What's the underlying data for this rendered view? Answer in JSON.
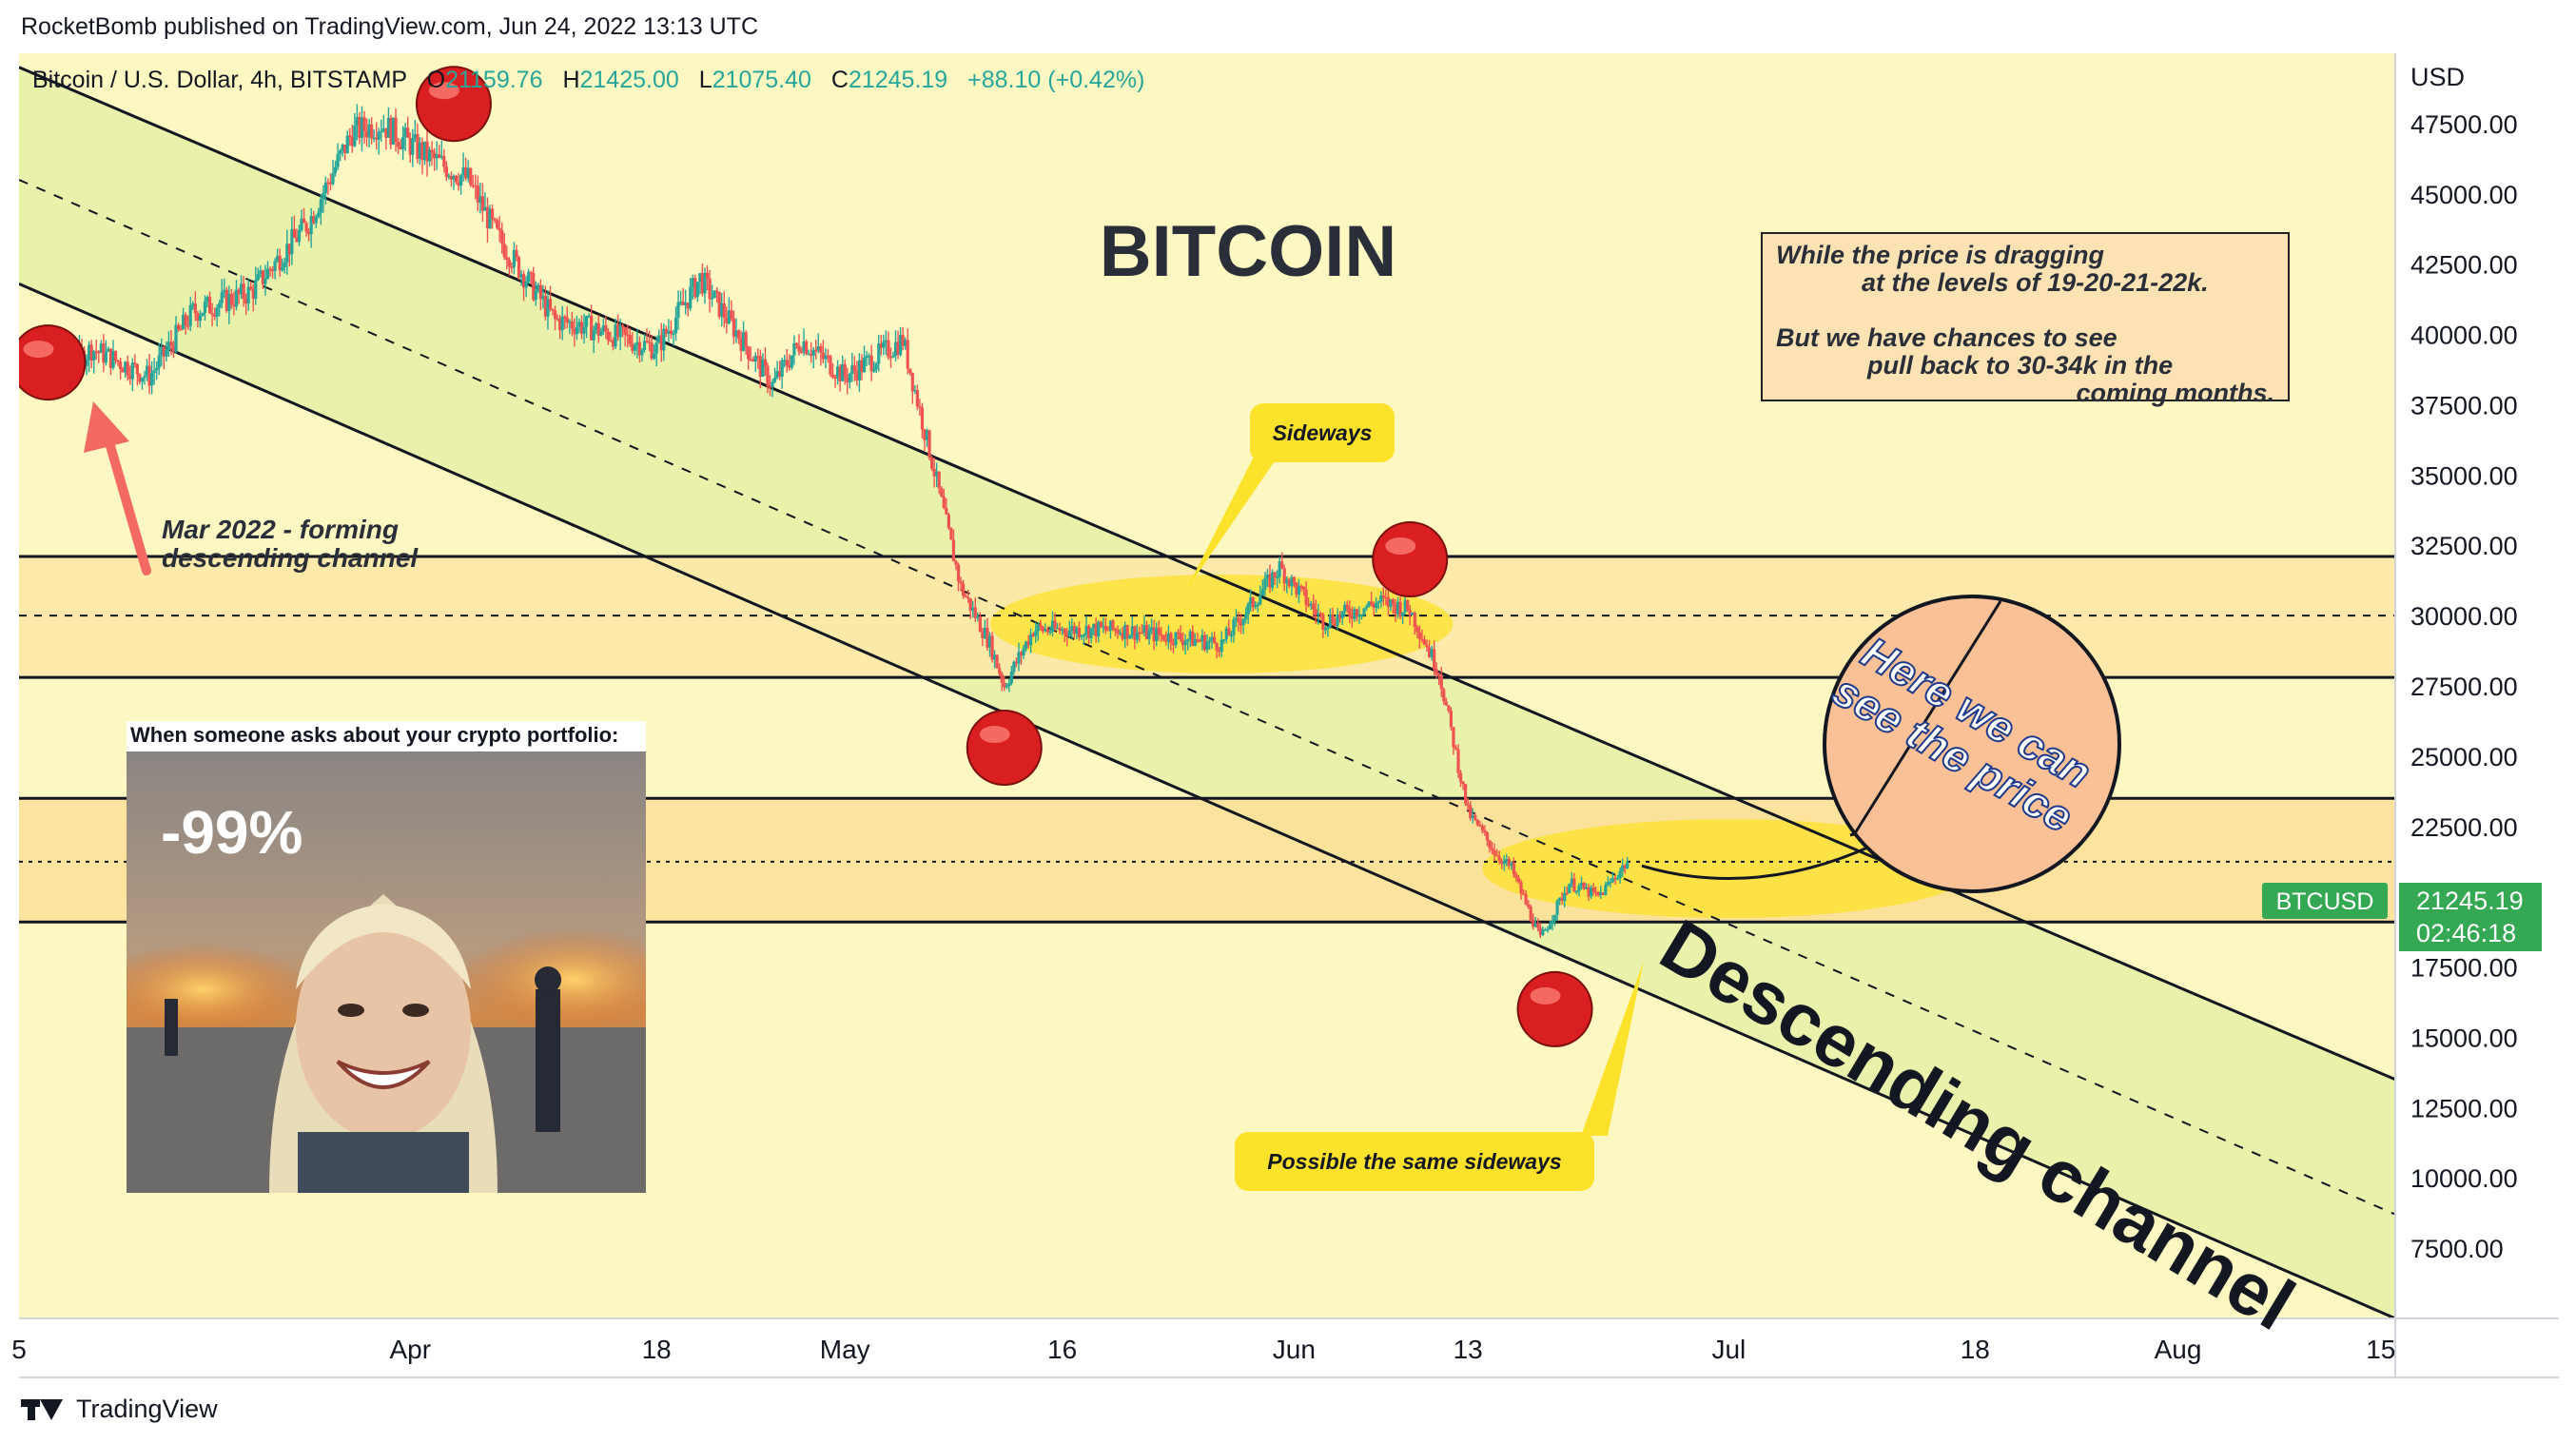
{
  "header": {
    "published": "RocketBomb published on TradingView.com, Jun 24, 2022 13:13 UTC"
  },
  "legend": {
    "symbol": "Bitcoin / U.S. Dollar, 4h, BITSTAMP",
    "open_label": "O",
    "open": "21159.76",
    "high_label": "H",
    "high": "21425.00",
    "low_label": "L",
    "low": "21075.40",
    "close_label": "C",
    "close": "21245.19",
    "change": "+88.10 (+0.42%)"
  },
  "currency": "USD",
  "price_tag": {
    "symbol": "BTCUSD",
    "price": "21245.19",
    "countdown": "02:46:18",
    "color": "#34a853"
  },
  "colors": {
    "background": "#fdf7c2",
    "channel_fill": "#e8f0a8",
    "band_fill": "#fde8a6",
    "bull": "#26a69a",
    "bear": "#ef5350",
    "callout": "#fde22b"
  },
  "annotations": {
    "title": "BITCOIN",
    "note_lines": [
      "While the price is dragging",
      "at the levels of 19-20-21-22k.",
      "",
      "But we have chances to see",
      "pull back to 30-34k in the",
      "coming months."
    ],
    "channel_start": [
      "Mar 2022 - forming",
      "descending channel"
    ],
    "sideways": "Sideways",
    "possible_sideways": "Possible the same sideways",
    "circle_text": [
      "Here we can",
      "see the price"
    ],
    "channel_label": "Descending channel"
  },
  "meme": {
    "caption": "When someone asks about your crypto portfolio:",
    "percent": "-99%"
  },
  "footer": {
    "brand": "TradingView"
  },
  "chart_data": {
    "type": "candlestick",
    "timeframe": "4h",
    "ylim": [
      5000,
      50000
    ],
    "y_ticks": [
      7500,
      10000,
      12500,
      15000,
      17500,
      20000,
      22500,
      25000,
      27500,
      30000,
      32500,
      35000,
      37500,
      40000,
      42500,
      45000,
      47500
    ],
    "y_tick_labels": [
      "7500.00",
      "10000.00",
      "12500.00",
      "15000.00",
      "17500.00",
      "20000.00",
      "22500.00",
      "25000.00",
      "27500.00",
      "30000.00",
      "32500.00",
      "35000.00",
      "37500.00",
      "40000.00",
      "42500.00",
      "45000.00",
      "47500.00"
    ],
    "x_range": [
      "2022-03-05",
      "2022-08-16"
    ],
    "x_ticks": [
      {
        "date": "2022-03-05",
        "label": "5"
      },
      {
        "date": "2022-04-01",
        "label": "Apr"
      },
      {
        "date": "2022-04-18",
        "label": "18"
      },
      {
        "date": "2022-05-01",
        "label": "May"
      },
      {
        "date": "2022-05-16",
        "label": "16"
      },
      {
        "date": "2022-06-01",
        "label": "Jun"
      },
      {
        "date": "2022-06-13",
        "label": "13"
      },
      {
        "date": "2022-07-01",
        "label": "Jul"
      },
      {
        "date": "2022-07-18",
        "label": "18"
      },
      {
        "date": "2022-08-01",
        "label": "Aug"
      },
      {
        "date": "2022-08-15",
        "label": "15"
      }
    ],
    "price_path": [
      {
        "date": "2022-03-05",
        "price": 39000
      },
      {
        "date": "2022-03-07",
        "price": 38200
      },
      {
        "date": "2022-03-10",
        "price": 39500
      },
      {
        "date": "2022-03-14",
        "price": 38500
      },
      {
        "date": "2022-03-17",
        "price": 40800
      },
      {
        "date": "2022-03-21",
        "price": 41500
      },
      {
        "date": "2022-03-25",
        "price": 44000
      },
      {
        "date": "2022-03-28",
        "price": 47200
      },
      {
        "date": "2022-03-30",
        "price": 47500
      },
      {
        "date": "2022-04-02",
        "price": 46400
      },
      {
        "date": "2022-04-05",
        "price": 45500
      },
      {
        "date": "2022-04-07",
        "price": 43500
      },
      {
        "date": "2022-04-11",
        "price": 40500
      },
      {
        "date": "2022-04-13",
        "price": 40300
      },
      {
        "date": "2022-04-18",
        "price": 39500
      },
      {
        "date": "2022-04-21",
        "price": 42000
      },
      {
        "date": "2022-04-26",
        "price": 38200
      },
      {
        "date": "2022-04-28",
        "price": 39800
      },
      {
        "date": "2022-05-01",
        "price": 38500
      },
      {
        "date": "2022-05-05",
        "price": 39800
      },
      {
        "date": "2022-05-07",
        "price": 35500
      },
      {
        "date": "2022-05-09",
        "price": 31000
      },
      {
        "date": "2022-05-11",
        "price": 29000
      },
      {
        "date": "2022-05-12",
        "price": 27500
      },
      {
        "date": "2022-05-14",
        "price": 29500
      },
      {
        "date": "2022-05-20",
        "price": 29500
      },
      {
        "date": "2022-05-27",
        "price": 29000
      },
      {
        "date": "2022-05-31",
        "price": 31700
      },
      {
        "date": "2022-06-03",
        "price": 29800
      },
      {
        "date": "2022-06-07",
        "price": 30500
      },
      {
        "date": "2022-06-09",
        "price": 30200
      },
      {
        "date": "2022-06-11",
        "price": 28000
      },
      {
        "date": "2022-06-13",
        "price": 23000
      },
      {
        "date": "2022-06-15",
        "price": 21500
      },
      {
        "date": "2022-06-16",
        "price": 21000
      },
      {
        "date": "2022-06-18",
        "price": 18500
      },
      {
        "date": "2022-06-20",
        "price": 20500
      },
      {
        "date": "2022-06-22",
        "price": 20000
      },
      {
        "date": "2022-06-24",
        "price": 21245
      }
    ],
    "touch_points": [
      {
        "date": "2022-03-07",
        "price": 39000
      },
      {
        "date": "2022-04-04",
        "price": 48200
      },
      {
        "date": "2022-05-12",
        "price": 25300
      },
      {
        "date": "2022-06-09",
        "price": 32000
      },
      {
        "date": "2022-06-19",
        "price": 16000
      }
    ],
    "channel": {
      "upper": [
        {
          "date": "2022-03-05",
          "price": 49500
        },
        {
          "date": "2022-08-16",
          "price": 13500
        }
      ],
      "middle": [
        {
          "date": "2022-03-05",
          "price": 45500
        },
        {
          "date": "2022-08-16",
          "price": 8700
        }
      ],
      "lower": [
        {
          "date": "2022-03-05",
          "price": 41800
        },
        {
          "date": "2022-08-16",
          "price": 5000
        }
      ]
    },
    "zones": [
      {
        "from": 27800,
        "to": 32100,
        "mid": 30000
      },
      {
        "from": 19100,
        "to": 23500,
        "mid": 21245
      }
    ],
    "projection": [
      {
        "date": "2022-06-25",
        "price": 21100
      },
      {
        "date": "2022-07-02",
        "price": 20700
      },
      {
        "date": "2022-07-09",
        "price": 21300
      },
      {
        "date": "2022-07-15",
        "price": 23000
      }
    ]
  }
}
